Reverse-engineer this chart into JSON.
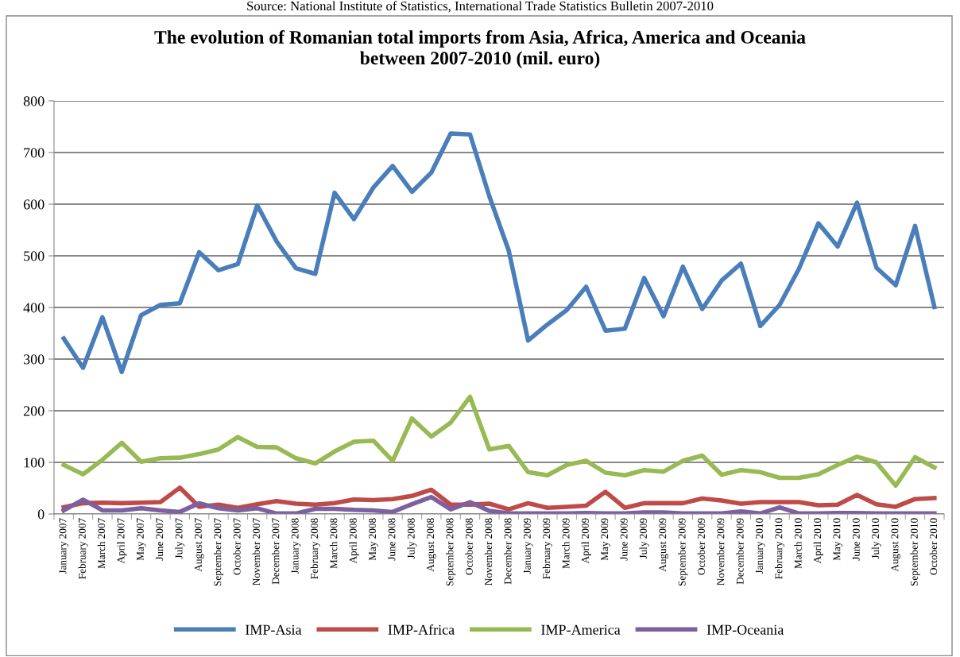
{
  "chart_data": {
    "type": "line",
    "title": "The evolution of Romanian total imports from Asia, Africa, America and Oceania\nbetween 2007-2010 (mil. euro)",
    "annotations": [
      "Source: National Institute of Statistics, International Trade Statistics Bulletin 2007-2010"
    ],
    "categories": [
      "January 2007",
      "February 2007",
      "March 2007",
      "April 2007",
      "May 2007",
      "June 2007",
      "July 2007",
      "August 2007",
      "September 2007",
      "October 2007",
      "November 2007",
      "December 2007",
      "January 2008",
      "February 2008",
      "March 2008",
      "April 2008",
      "May 2008",
      "June 2008",
      "July 2008",
      "August 2008",
      "September 2008",
      "October 2008",
      "November 2008",
      "December 2008",
      "January 2009",
      "February 2009",
      "March 2009",
      "April 2009",
      "May 2009",
      "June 2009",
      "July 2009",
      "August 2009",
      "September 2009",
      "October 2009",
      "November 2009",
      "December 2009",
      "January 2010",
      "February 2010",
      "March 2010",
      "April 2010",
      "May 2010",
      "June 2010",
      "July 2010",
      "August 2010",
      "September 2010",
      "October 2010"
    ],
    "series": [
      {
        "name": "IMP-Asia",
        "color": "#4a7ebb",
        "values": [
          340,
          283,
          381,
          275,
          385,
          405,
          408,
          507,
          472,
          484,
          598,
          528,
          476,
          465,
          622,
          571,
          632,
          674,
          624,
          661,
          737,
          735,
          615,
          510,
          336,
          367,
          395,
          440,
          355,
          359,
          457,
          383,
          479,
          397,
          452,
          485,
          364,
          405,
          475,
          563,
          518,
          603,
          477,
          443,
          558,
          401
        ]
      },
      {
        "name": "IMP-Africa",
        "color": "#be4b48",
        "values": [
          13,
          21,
          22,
          21,
          22,
          23,
          51,
          14,
          18,
          12,
          19,
          25,
          20,
          18,
          21,
          28,
          27,
          29,
          35,
          47,
          18,
          18,
          20,
          9,
          21,
          12,
          14,
          16,
          43,
          12,
          21,
          21,
          21,
          30,
          26,
          20,
          23,
          23,
          23,
          17,
          18,
          37,
          19,
          14,
          29,
          31
        ]
      },
      {
        "name": "IMP-America",
        "color": "#98b954",
        "values": [
          95,
          77,
          105,
          138,
          101,
          108,
          109,
          116,
          125,
          149,
          130,
          129,
          108,
          98,
          121,
          140,
          142,
          103,
          185,
          150,
          177,
          227,
          125,
          132,
          81,
          75,
          95,
          103,
          80,
          75,
          85,
          82,
          103,
          113,
          76,
          85,
          81,
          70,
          70,
          77,
          95,
          111,
          100,
          55,
          110,
          90
        ]
      },
      {
        "name": "IMP-Oceania",
        "color": "#7d60a0",
        "values": [
          7,
          28,
          7,
          7,
          11,
          7,
          4,
          21,
          11,
          7,
          11,
          1,
          1,
          10,
          10,
          8,
          7,
          4,
          19,
          33,
          9,
          23,
          6,
          1,
          1,
          1,
          1,
          2,
          1,
          1,
          3,
          3,
          1,
          1,
          1,
          5,
          1,
          13,
          1,
          1,
          2,
          2,
          1,
          1,
          1,
          1
        ]
      }
    ],
    "ylim": [
      0,
      800
    ],
    "yticks": [
      0,
      100,
      200,
      300,
      400,
      500,
      600,
      700,
      800
    ],
    "grid": "y",
    "legend": "bottom",
    "marker": "none",
    "line_style": "solid"
  }
}
